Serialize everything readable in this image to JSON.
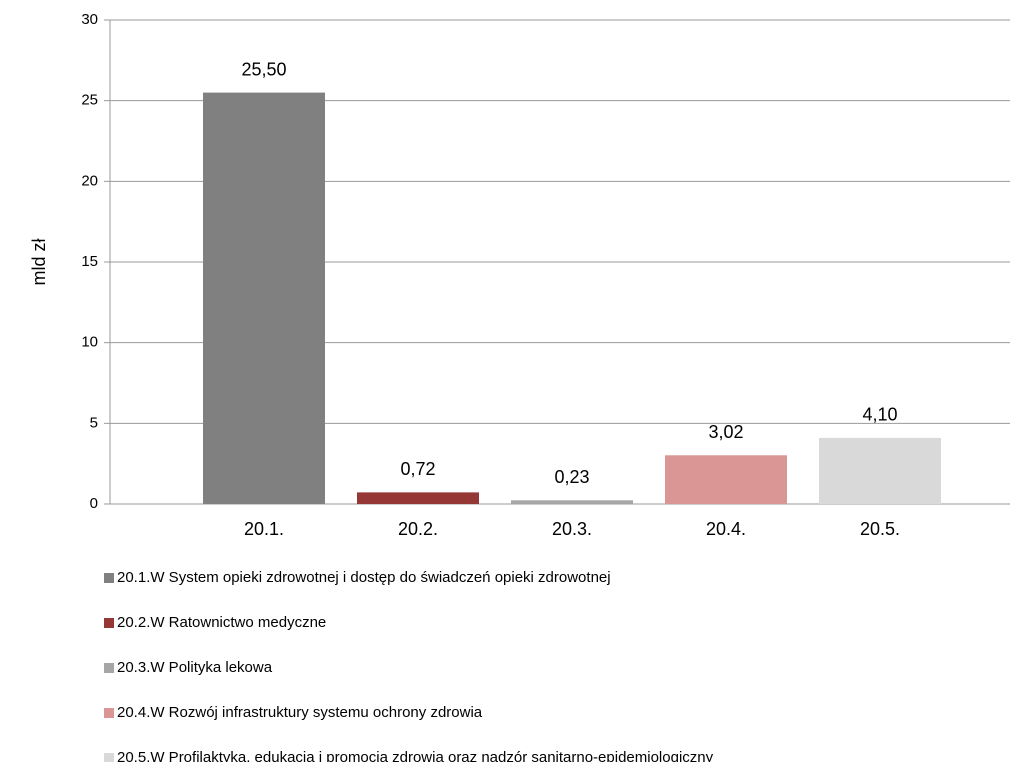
{
  "chart_data": {
    "type": "bar",
    "y_label": "mld zł",
    "categories": [
      "20.1.",
      "20.2.",
      "20.3.",
      "20.4.",
      "20.5."
    ],
    "values": [
      25.5,
      0.72,
      0.23,
      3.02,
      4.1
    ],
    "value_labels": [
      "25,50",
      "0,72",
      "0,23",
      "3,02",
      "4,10"
    ],
    "colors": [
      "#808080",
      "#953735",
      "#a6a6a6",
      "#d99694",
      "#d9d9d9"
    ],
    "legend": [
      "20.1.W System opieki zdrowotnej i dostęp do świadczeń opieki zdrowotnej",
      "20.2.W Ratownictwo medyczne",
      "20.3.W Polityka lekowa",
      "20.4.W Rozwój infrastruktury systemu ochrony zdrowia",
      "20.5.W Profilaktyka, edukacja i promocja zdrowia oraz nadzór sanitarno-epidemiologiczny"
    ],
    "ylim": [
      0,
      30
    ],
    "yticks": [
      0,
      5,
      10,
      15,
      20,
      25,
      30
    ],
    "grid": true
  }
}
